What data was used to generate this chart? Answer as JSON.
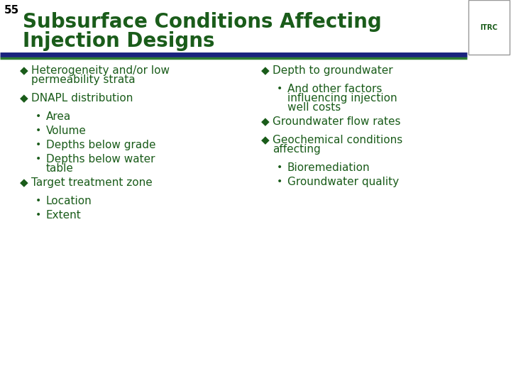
{
  "slide_number": "55",
  "title_line1": "Subsurface Conditions Affecting",
  "title_line2": "Injection Designs",
  "title_color": "#1a5c1a",
  "slide_number_color": "#000000",
  "background_color": "#ffffff",
  "content_color": "#1a5c1a",
  "line1_color": "#1a237e",
  "line2_color": "#2e7d32",
  "left_items": [
    {
      "level": 1,
      "text": "Heterogeneity and/or low\npermeability strata"
    },
    {
      "level": 1,
      "text": "DNAPL distribution"
    },
    {
      "level": 2,
      "text": "Area"
    },
    {
      "level": 2,
      "text": "Volume"
    },
    {
      "level": 2,
      "text": "Depths below grade"
    },
    {
      "level": 2,
      "text": "Depths below water\ntable"
    },
    {
      "level": 1,
      "text": "Target treatment zone"
    },
    {
      "level": 2,
      "text": "Location"
    },
    {
      "level": 2,
      "text": "Extent"
    }
  ],
  "right_items": [
    {
      "level": 1,
      "text": "Depth to groundwater"
    },
    {
      "level": 2,
      "text": "And other factors\ninfluencing injection\nwell costs"
    },
    {
      "level": 1,
      "text": "Groundwater flow rates"
    },
    {
      "level": 1,
      "text": "Geochemical conditions\naffecting"
    },
    {
      "level": 2,
      "text": "Bioremediation"
    },
    {
      "level": 2,
      "text": "Groundwater quality"
    }
  ]
}
